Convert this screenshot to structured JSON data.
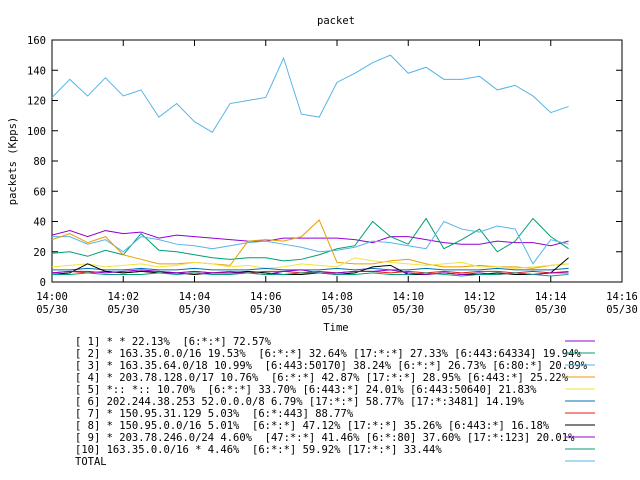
{
  "chart_data": {
    "type": "line",
    "title": "packet",
    "x_label": "Time",
    "y_label": "packets (Kpps)",
    "x": [
      0,
      0.5,
      1,
      1.5,
      2,
      2.5,
      3,
      3.5,
      4,
      4.5,
      5,
      5.5,
      6,
      6.5,
      7,
      7.5,
      8,
      8.5,
      9,
      9.5,
      10,
      10.5,
      11,
      11.5,
      12,
      12.5,
      13,
      13.5,
      14,
      14.5
    ],
    "xlim": [
      0,
      16
    ],
    "xticks": [
      {
        "value": 0,
        "label": "14:00\n05/30"
      },
      {
        "value": 2,
        "label": "14:02\n05/30"
      },
      {
        "value": 4,
        "label": "14:04\n05/30"
      },
      {
        "value": 6,
        "label": "14:06\n05/30"
      },
      {
        "value": 8,
        "label": "14:08\n05/30"
      },
      {
        "value": 10,
        "label": "14:10\n05/30"
      },
      {
        "value": 12,
        "label": "14:12\n05/30"
      },
      {
        "value": 14,
        "label": "14:14\n05/30"
      },
      {
        "value": 16,
        "label": "14:16\n05/30"
      }
    ],
    "ylim": [
      0,
      160
    ],
    "yticks": [
      0,
      20,
      40,
      60,
      80,
      100,
      120,
      140,
      160
    ],
    "legend": "bottom",
    "series": [
      {
        "name": "[ 1] * * 22.13%  [6:*:*] 72.57%",
        "color": "#9400d3",
        "values": [
          31,
          34,
          30,
          34,
          32,
          33,
          29,
          31,
          30,
          29,
          28,
          27,
          27,
          29,
          29,
          29,
          29,
          28,
          26,
          30,
          30,
          28,
          26,
          25,
          25,
          27,
          26,
          26,
          24,
          27
        ]
      },
      {
        "name": "[ 2] * 163.35.0.0/16 19.53%  [6:*:*] 32.64% [17:*:*] 27.33% [6:443:64334] 19.94%",
        "color": "#009e73",
        "values": [
          19,
          20,
          17,
          21,
          18,
          32,
          21,
          20,
          18,
          16,
          15,
          16,
          16,
          14,
          15,
          18,
          22,
          24,
          40,
          30,
          25,
          42,
          22,
          28,
          35,
          20,
          27,
          42,
          30,
          22
        ]
      },
      {
        "name": "[ 3] * 163.35.64.0/18 10.99%  [6:443:50170] 38.24% [6:*:*] 26.73% [6:80:*] 20.89%",
        "color": "#56b4e9",
        "values": [
          30,
          30,
          25,
          28,
          20,
          30,
          28,
          25,
          24,
          22,
          24,
          26,
          27,
          25,
          23,
          20,
          21,
          23,
          27,
          26,
          24,
          22,
          40,
          35,
          33,
          37,
          35,
          12,
          28,
          25
        ]
      },
      {
        "name": "[ 4] * 203.78.128.0/17 10.76%  [6:*:*] 42.87% [17:*:*] 28.95% [6:443:*] 25.22%",
        "color": "#e69f00",
        "values": [
          28,
          32,
          26,
          30,
          18,
          15,
          12,
          12,
          13,
          12,
          11,
          27,
          28,
          27,
          30,
          41,
          13,
          12,
          12,
          14,
          15,
          12,
          10,
          10,
          11,
          10,
          10,
          9,
          11,
          12
        ]
      },
      {
        "name": "[ 5] *:: *:: 10.70%  [6:*:*] 33.70% [6:443:*] 24.01% [6:443:50640] 21.83%",
        "color": "#f0e442",
        "values": [
          10,
          11,
          12,
          10,
          11,
          12,
          10,
          11,
          13,
          12,
          10,
          11,
          9,
          10,
          12,
          11,
          10,
          16,
          14,
          13,
          12,
          11,
          12,
          13,
          10,
          10,
          9,
          10,
          11,
          12
        ]
      },
      {
        "name": "[ 6] 202.244.38.253 52.0.0.0/8 6.79% [17:*:*] 58.77% [17:*:3481] 14.19%",
        "color": "#0072b2",
        "values": [
          8,
          8,
          9,
          8,
          8,
          9,
          8,
          8,
          9,
          8,
          8,
          8,
          9,
          8,
          8,
          8,
          9,
          8,
          9,
          8,
          8,
          9,
          8,
          8,
          8,
          9,
          8,
          8,
          8,
          9
        ]
      },
      {
        "name": "[ 7] * 150.95.31.129 5.03%  [6:*:443] 88.77%",
        "color": "#e51e10",
        "values": [
          6,
          7,
          6,
          7,
          6,
          7,
          7,
          6,
          7,
          6,
          7,
          6,
          7,
          7,
          6,
          7,
          6,
          7,
          7,
          6,
          7,
          6,
          7,
          6,
          7,
          7,
          6,
          7,
          6,
          7
        ]
      },
      {
        "name": "[ 8] * 150.95.0.0/16 5.01%  [6:*:*] 47.12% [17:*:*] 35.26% [6:443:*] 16.18%",
        "color": "#000000",
        "values": [
          5,
          6,
          12,
          7,
          6,
          7,
          6,
          6,
          5,
          6,
          6,
          7,
          6,
          5,
          5,
          6,
          5,
          6,
          10,
          11,
          5,
          5,
          6,
          5,
          5,
          6,
          5,
          5,
          6,
          16
        ]
      },
      {
        "name": "[ 9] * 203.78.246.0/24 4.60%  [47:*:*] 41.46% [6:*:80] 37.60% [17:*:123] 20.01%",
        "color": "#9400d3",
        "values": [
          6,
          7,
          7,
          6,
          7,
          8,
          7,
          6,
          7,
          6,
          6,
          6,
          5,
          7,
          8,
          6,
          6,
          7,
          7,
          8,
          6,
          5,
          6,
          5,
          6,
          5,
          6,
          5,
          6,
          6
        ]
      },
      {
        "name": "[10] 163.35.0.0/16 * 4.46%  [6:*:*] 59.92% [17:*:*] 33.44%",
        "color": "#009e73",
        "values": [
          5,
          5,
          6,
          5,
          5,
          5,
          6,
          5,
          6,
          5,
          5,
          6,
          5,
          5,
          6,
          6,
          5,
          5,
          6,
          5,
          5,
          6,
          5,
          4,
          5,
          5,
          6,
          5,
          4,
          5
        ]
      },
      {
        "name": "TOTAL",
        "color": "#56b4e9",
        "values": [
          122,
          134,
          123,
          135,
          123,
          127,
          109,
          118,
          106,
          99,
          118,
          120,
          122,
          148,
          111,
          109,
          132,
          138,
          145,
          150,
          138,
          142,
          134,
          134,
          136,
          127,
          130,
          123,
          112,
          116
        ]
      }
    ]
  }
}
